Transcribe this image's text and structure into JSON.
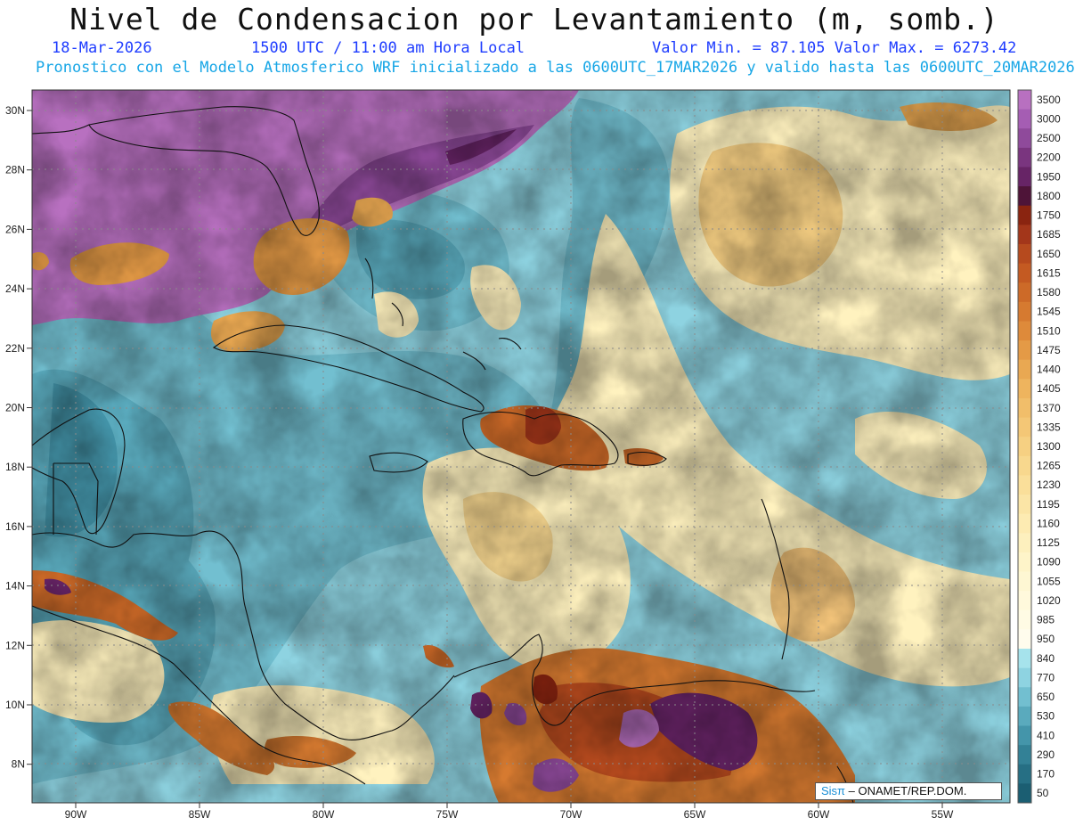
{
  "header": {
    "title": "Nivel de Condensacion por Levantamiento (m, somb.)",
    "date": "18-Mar-2026",
    "time": "1500 UTC / 11:00 am Hora Local",
    "minmax": "Valor Min. = 87.105   Valor Max. = 6273.42",
    "model_line": "Pronostico con el Modelo Atmosferico WRF inicializado a las 0600UTC_17MAR2026 y valido hasta las  0600UTC_20MAR2026"
  },
  "map": {
    "lat_labels": [
      "30N",
      "28N",
      "26N",
      "24N",
      "22N",
      "20N",
      "18N",
      "16N",
      "14N",
      "12N",
      "10N",
      "8N"
    ],
    "lon_labels": [
      "90W",
      "85W",
      "80W",
      "75W",
      "70W",
      "65W",
      "60W",
      "55W"
    ]
  },
  "colorbar": {
    "labels": [
      "3500",
      "3000",
      "2500",
      "2200",
      "1950",
      "1800",
      "1750",
      "1685",
      "1650",
      "1615",
      "1580",
      "1545",
      "1510",
      "1475",
      "1440",
      "1405",
      "1370",
      "1335",
      "1300",
      "1265",
      "1230",
      "1195",
      "1160",
      "1125",
      "1090",
      "1055",
      "1020",
      "985",
      "950",
      "840",
      "770",
      "650",
      "530",
      "410",
      "290",
      "170",
      "50"
    ],
    "colors": [
      "#b870c0",
      "#a55db3",
      "#8f4a9b",
      "#7a357f",
      "#672466",
      "#4e1438",
      "#8a2410",
      "#a3361a",
      "#b64a1e",
      "#c45a22",
      "#cd6a28",
      "#d67a30",
      "#de8a3a",
      "#e49a46",
      "#e9a852",
      "#eeb45e",
      "#f1be6a",
      "#f4c776",
      "#f6d082",
      "#f8d88e",
      "#fadf9a",
      "#fbe5a6",
      "#fdebb2",
      "#fdf0be",
      "#fef4c9",
      "#fef7d3",
      "#fff9dc",
      "#fffbe4",
      "#fffced",
      "#a6e3ec",
      "#8ed3e1",
      "#72bfd0",
      "#5aaabd",
      "#4495aa",
      "#338196",
      "#266f84",
      "#1b5e72"
    ]
  },
  "credit": {
    "brand": "Sisπ",
    "text": " – ONAMET/REP.DOM."
  }
}
